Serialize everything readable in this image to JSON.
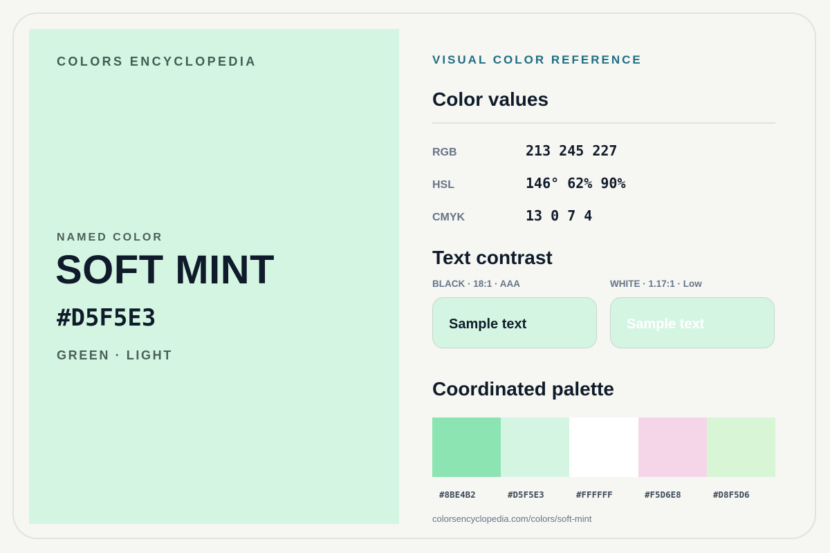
{
  "brand": "COLORS ENCYCLOPEDIA",
  "color": {
    "named_label": "NAMED COLOR",
    "name": "SOFT MINT",
    "hex": "#D5F5E3",
    "family": "GREEN · LIGHT",
    "swatch_color": "#D5F5E3"
  },
  "reference": {
    "eyebrow": "VISUAL COLOR REFERENCE",
    "values_title": "Color values",
    "values": [
      {
        "label": "RGB",
        "value": "213 245 227"
      },
      {
        "label": "HSL",
        "value": "146° 62% 90%"
      },
      {
        "label": "CMYK",
        "value": "13 0 7 4"
      }
    ]
  },
  "contrast": {
    "title": "Text contrast",
    "black": {
      "label": "BLACK · 18:1 · AAA",
      "sample": "Sample text",
      "text_color": "#0f1b2a"
    },
    "white": {
      "label": "WHITE · 1.17:1 · Low",
      "sample": "Sample text",
      "text_color": "#ffffff"
    }
  },
  "palette": {
    "title": "Coordinated palette",
    "colors": [
      {
        "hex": "#8BE4B2",
        "fill": "#8BE4B2"
      },
      {
        "hex": "#D5F5E3",
        "fill": "#D5F5E3"
      },
      {
        "hex": "#FFFFFF",
        "fill": "#FFFFFF"
      },
      {
        "hex": "#F5D6E8",
        "fill": "#F5D6E8"
      },
      {
        "hex": "#D8F5D6",
        "fill": "#D8F5D6"
      }
    ]
  },
  "url": "colorsencyclopedia.com/colors/soft-mint"
}
